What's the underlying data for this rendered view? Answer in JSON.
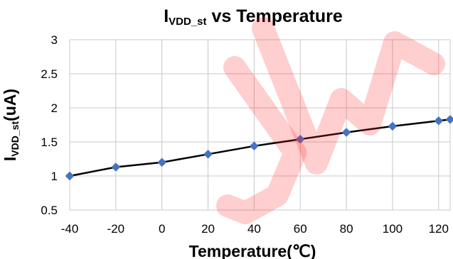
{
  "chart_data": {
    "type": "line",
    "title_main": "I",
    "title_sub": "VDD_st",
    "title_rest": " vs Temperature",
    "xlabel": "Temperature(℃)",
    "ylabel_main": "I",
    "ylabel_sub": "VDD_st",
    "ylabel_rest": "(uA)",
    "xlim": [
      -40,
      125
    ],
    "ylim": [
      0.5,
      3
    ],
    "xticks": [
      "-40",
      "-20",
      "0",
      "20",
      "40",
      "60",
      "80",
      "100",
      "120"
    ],
    "yticks": [
      "0.5",
      "1",
      "1.5",
      "2",
      "2.5",
      "3"
    ],
    "grid": true,
    "series": [
      {
        "x": [
          -40,
          -20,
          0,
          20,
          40,
          60,
          80,
          100,
          120,
          125
        ],
        "y": [
          1.0,
          1.13,
          1.2,
          1.32,
          1.44,
          1.54,
          1.64,
          1.73,
          1.81,
          1.83
        ]
      }
    ],
    "colors": {
      "line": "#000000",
      "marker": "#4472c4",
      "grid": "#c8c8c8",
      "watermark": "#ff2222"
    },
    "watermark_text": "JW"
  }
}
